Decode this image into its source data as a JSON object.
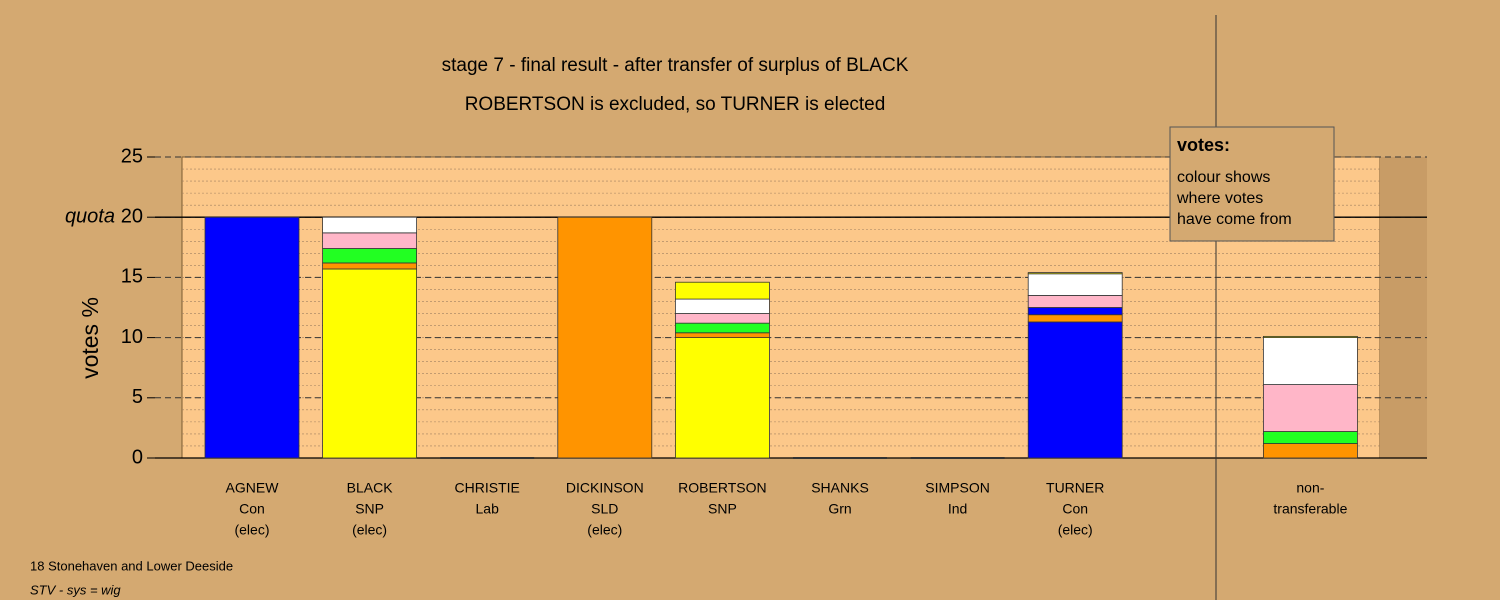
{
  "chart_data": {
    "type": "stacked-bar",
    "title": "stage 7 - final result - after transfer of surplus of BLACK",
    "subtitle": "ROBERTSON is excluded, so TURNER is elected",
    "y_label": "votes %",
    "quota_label": "quota",
    "quota": 20,
    "categories": [
      [
        "AGNEW",
        "Con",
        "(elec)"
      ],
      [
        "BLACK",
        "SNP",
        "(elec)"
      ],
      [
        "CHRISTIE",
        "Lab"
      ],
      [
        "DICKINSON",
        "SLD",
        "(elec)"
      ],
      [
        "ROBERTSON",
        "SNP"
      ],
      [
        "SHANKS",
        "Grn"
      ],
      [
        "SIMPSON",
        "Ind"
      ],
      [
        "TURNER",
        "Con",
        "(elec)"
      ],
      [
        "non-",
        "transferable"
      ]
    ],
    "series": [
      {
        "color": "#0000ff",
        "values": [
          20,
          0,
          0,
          0,
          0,
          0,
          0,
          11.3,
          0
        ]
      },
      {
        "color": "#ffff00",
        "values": [
          0,
          15.7,
          0,
          0,
          10.0,
          0,
          0,
          0,
          0
        ]
      },
      {
        "color": "#ff9400",
        "values": [
          0,
          0.5,
          0,
          20,
          0.4,
          0,
          0,
          0.6,
          1.2
        ]
      },
      {
        "color": "#0000ff",
        "values": [
          0,
          0,
          0,
          0,
          0,
          0,
          0,
          0.6,
          0
        ]
      },
      {
        "color": "#22ff22",
        "values": [
          0,
          1.2,
          0,
          0,
          0.8,
          0,
          0,
          0,
          1.0
        ]
      },
      {
        "color": "#ffb6c8",
        "values": [
          0,
          1.3,
          0,
          0,
          0.8,
          0,
          0,
          1.0,
          3.9
        ]
      },
      {
        "color": "#ffffff",
        "values": [
          0,
          1.3,
          0,
          0,
          1.2,
          0,
          0,
          1.8,
          3.9
        ]
      },
      {
        "color": "#ffff00",
        "values": [
          0,
          0,
          0,
          0,
          1.4,
          0,
          0,
          0.1,
          0.1
        ]
      }
    ],
    "ylim": [
      0,
      25
    ],
    "yticks": [
      0,
      5,
      10,
      15,
      20,
      25
    ],
    "minor_ystep": 1,
    "legend": {
      "title": "votes:",
      "lines": [
        "colour shows",
        "where votes",
        "have come from"
      ]
    },
    "footnotes": [
      "18 Stonehaven and Lower Deeside",
      "STV - sys = wig"
    ]
  }
}
